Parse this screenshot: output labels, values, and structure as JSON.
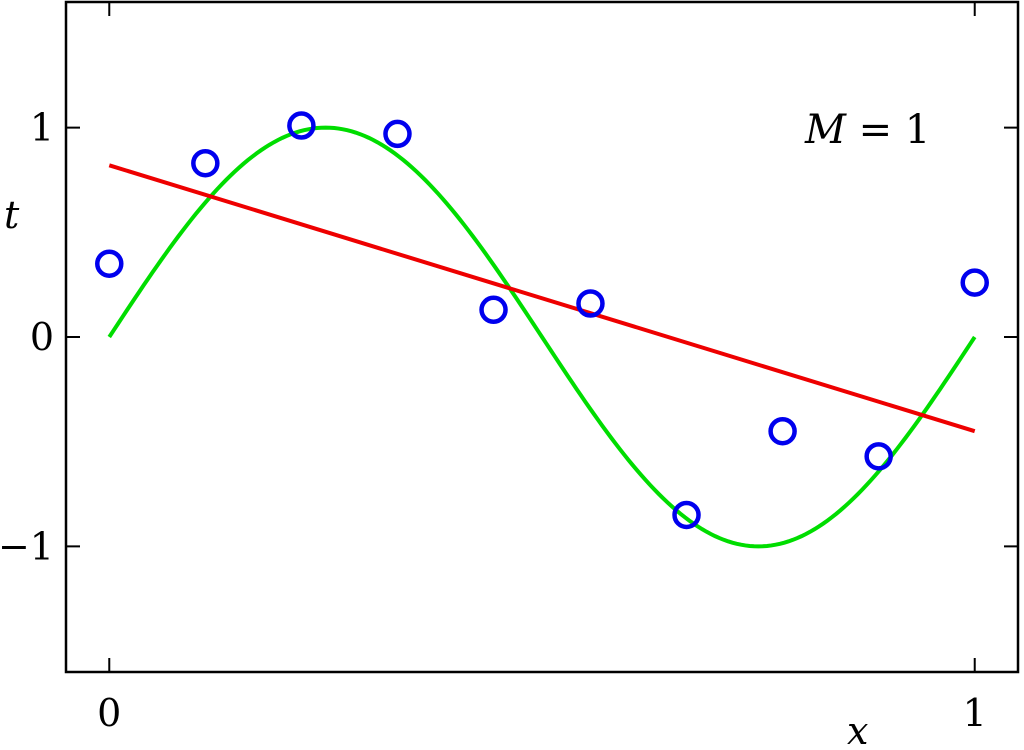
{
  "chart_data": {
    "type": "line",
    "xlabel": "x",
    "ylabel": "t",
    "xlim": [
      -0.05,
      1.05
    ],
    "ylim": [
      -1.6,
      1.6
    ],
    "xticks": [
      {
        "value": 0,
        "label": "0"
      },
      {
        "value": 1,
        "label": "1"
      }
    ],
    "yticks": [
      {
        "value": -1,
        "label": "−1"
      },
      {
        "value": 0,
        "label": "0"
      },
      {
        "value": 1,
        "label": "1"
      }
    ],
    "annotation": {
      "var": "M",
      "eq": " = ",
      "val": "1"
    },
    "grid": false,
    "series": [
      {
        "name": "sin(2πx)",
        "kind": "function",
        "function": "sin(2*pi*x)",
        "x_range": [
          0,
          1
        ],
        "color": "#00dd00"
      },
      {
        "name": "fit M=1",
        "kind": "line",
        "x": [
          0,
          1
        ],
        "y": [
          0.82,
          -0.45
        ],
        "color": "#ee0000"
      },
      {
        "name": "observations",
        "kind": "scatter",
        "x": [
          0.0,
          0.111,
          0.222,
          0.333,
          0.444,
          0.556,
          0.667,
          0.778,
          0.889,
          1.0
        ],
        "y": [
          0.35,
          0.83,
          1.01,
          0.97,
          0.13,
          0.16,
          -0.85,
          -0.45,
          -0.57,
          0.26
        ],
        "color": "#0000ee"
      }
    ]
  }
}
